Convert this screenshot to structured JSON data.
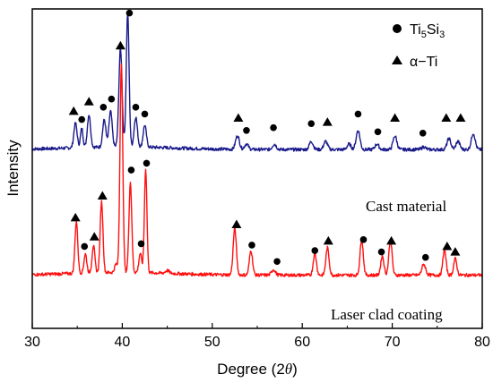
{
  "chart_data": {
    "type": "line",
    "xlabel_main": "Degree (2",
    "xlabel_symbol": "θ",
    "xlabel_close": ")",
    "ylabel": "Intensity",
    "xlim": [
      30,
      80
    ],
    "xticks": [
      "30",
      "40",
      "50",
      "60",
      "70",
      "80"
    ],
    "yticks_shown": false,
    "legend": {
      "placement": "top-right",
      "entries": [
        {
          "marker": "circle",
          "label_main": "Ti",
          "label_sub1": "5",
          "label_mid": "Si",
          "label_sub2": "3"
        },
        {
          "marker": "triangle",
          "label": "α−Ti"
        }
      ]
    },
    "series": [
      {
        "name": "Cast material",
        "color": "#1a1a8c",
        "baseline": 0.655,
        "peaks": [
          {
            "x": 34.8,
            "h": 0.09,
            "w": 0.25
          },
          {
            "x": 35.5,
            "h": 0.07,
            "w": 0.2
          },
          {
            "x": 36.3,
            "h": 0.12,
            "w": 0.25
          },
          {
            "x": 38.0,
            "h": 0.1,
            "w": 0.25
          },
          {
            "x": 38.7,
            "h": 0.13,
            "w": 0.25
          },
          {
            "x": 39.8,
            "h": 0.36,
            "w": 0.25
          },
          {
            "x": 40.6,
            "h": 0.49,
            "w": 0.22
          },
          {
            "x": 41.5,
            "h": 0.11,
            "w": 0.25
          },
          {
            "x": 42.5,
            "h": 0.08,
            "w": 0.25
          },
          {
            "x": 52.8,
            "h": 0.05,
            "w": 0.3
          },
          {
            "x": 53.8,
            "h": 0.02,
            "w": 0.3
          },
          {
            "x": 56.9,
            "h": 0.02,
            "w": 0.3
          },
          {
            "x": 61.0,
            "h": 0.03,
            "w": 0.3
          },
          {
            "x": 62.6,
            "h": 0.03,
            "w": 0.3
          },
          {
            "x": 65.2,
            "h": 0.02,
            "w": 0.3
          },
          {
            "x": 66.2,
            "h": 0.07,
            "w": 0.3
          },
          {
            "x": 68.3,
            "h": 0.02,
            "w": 0.3
          },
          {
            "x": 70.3,
            "h": 0.05,
            "w": 0.3
          },
          {
            "x": 73.5,
            "h": 0.01,
            "w": 0.3
          },
          {
            "x": 76.3,
            "h": 0.04,
            "w": 0.3
          },
          {
            "x": 77.3,
            "h": 0.03,
            "w": 0.3
          },
          {
            "x": 79.0,
            "h": 0.06,
            "w": 0.3
          }
        ],
        "label": "Cast material"
      },
      {
        "name": "Laser clad coating",
        "color": "#ff1010",
        "baseline": 0.195,
        "peaks": [
          {
            "x": 34.9,
            "h": 0.19,
            "w": 0.22
          },
          {
            "x": 35.9,
            "h": 0.07,
            "w": 0.22
          },
          {
            "x": 36.8,
            "h": 0.1,
            "w": 0.22
          },
          {
            "x": 37.7,
            "h": 0.26,
            "w": 0.22
          },
          {
            "x": 39.3,
            "h": 0.03,
            "w": 0.22
          },
          {
            "x": 39.9,
            "h": 0.76,
            "w": 0.22
          },
          {
            "x": 40.9,
            "h": 0.33,
            "w": 0.22
          },
          {
            "x": 42.0,
            "h": 0.07,
            "w": 0.22
          },
          {
            "x": 42.6,
            "h": 0.38,
            "w": 0.2
          },
          {
            "x": 45.0,
            "h": 0.01,
            "w": 0.3
          },
          {
            "x": 52.5,
            "h": 0.17,
            "w": 0.25
          },
          {
            "x": 54.3,
            "h": 0.09,
            "w": 0.25
          },
          {
            "x": 56.8,
            "h": 0.02,
            "w": 0.3
          },
          {
            "x": 61.4,
            "h": 0.08,
            "w": 0.25
          },
          {
            "x": 62.8,
            "h": 0.1,
            "w": 0.25
          },
          {
            "x": 66.6,
            "h": 0.13,
            "w": 0.25
          },
          {
            "x": 68.9,
            "h": 0.07,
            "w": 0.25
          },
          {
            "x": 69.8,
            "h": 0.13,
            "w": 0.25
          },
          {
            "x": 73.5,
            "h": 0.04,
            "w": 0.3
          },
          {
            "x": 75.8,
            "h": 0.09,
            "w": 0.25
          },
          {
            "x": 77.0,
            "h": 0.06,
            "w": 0.25
          }
        ],
        "label": "Laser clad coating"
      }
    ],
    "markers": [
      {
        "series": "Cast material",
        "type": "triangle",
        "x": 34.6,
        "y": 0.795
      },
      {
        "series": "Cast material",
        "type": "circle",
        "x": 35.5,
        "y": 0.765
      },
      {
        "series": "Cast material",
        "type": "triangle",
        "x": 36.3,
        "y": 0.83
      },
      {
        "series": "Cast material",
        "type": "circle",
        "x": 37.9,
        "y": 0.81
      },
      {
        "series": "Cast material",
        "type": "circle",
        "x": 38.8,
        "y": 0.84
      },
      {
        "series": "Cast material",
        "type": "triangle",
        "x": 39.8,
        "y": 1.035
      },
      {
        "series": "Cast material",
        "type": "circle",
        "x": 40.8,
        "y": 1.155
      },
      {
        "series": "Cast material",
        "type": "circle",
        "x": 41.5,
        "y": 0.81
      },
      {
        "series": "Cast material",
        "type": "circle",
        "x": 42.5,
        "y": 0.785
      },
      {
        "series": "Cast material",
        "type": "triangle",
        "x": 52.9,
        "y": 0.77
      },
      {
        "series": "Cast material",
        "type": "circle",
        "x": 53.8,
        "y": 0.725
      },
      {
        "series": "Cast material",
        "type": "circle",
        "x": 56.8,
        "y": 0.735
      },
      {
        "series": "Cast material",
        "type": "circle",
        "x": 61.0,
        "y": 0.75
      },
      {
        "series": "Cast material",
        "type": "triangle",
        "x": 62.8,
        "y": 0.755
      },
      {
        "series": "Cast material",
        "type": "circle",
        "x": 66.2,
        "y": 0.785
      },
      {
        "series": "Cast material",
        "type": "circle",
        "x": 68.4,
        "y": 0.72
      },
      {
        "series": "Cast material",
        "type": "triangle",
        "x": 70.3,
        "y": 0.77
      },
      {
        "series": "Cast material",
        "type": "circle",
        "x": 73.4,
        "y": 0.715
      },
      {
        "series": "Cast material",
        "type": "triangle",
        "x": 76.0,
        "y": 0.77
      },
      {
        "series": "Cast material",
        "type": "triangle",
        "x": 77.6,
        "y": 0.77
      },
      {
        "series": "Laser clad coating",
        "type": "triangle",
        "x": 34.8,
        "y": 0.405
      },
      {
        "series": "Laser clad coating",
        "type": "circle",
        "x": 35.8,
        "y": 0.3
      },
      {
        "series": "Laser clad coating",
        "type": "triangle",
        "x": 36.9,
        "y": 0.335
      },
      {
        "series": "Laser clad coating",
        "type": "triangle",
        "x": 37.8,
        "y": 0.485
      },
      {
        "series": "Laser clad coating",
        "type": "circle",
        "x": 41.0,
        "y": 0.58
      },
      {
        "series": "Laser clad coating",
        "type": "circle",
        "x": 42.1,
        "y": 0.31
      },
      {
        "series": "Laser clad coating",
        "type": "circle",
        "x": 42.7,
        "y": 0.605
      },
      {
        "series": "Laser clad coating",
        "type": "triangle",
        "x": 52.7,
        "y": 0.38
      },
      {
        "series": "Laser clad coating",
        "type": "circle",
        "x": 54.4,
        "y": 0.305
      },
      {
        "series": "Laser clad coating",
        "type": "circle",
        "x": 57.2,
        "y": 0.245
      },
      {
        "series": "Laser clad coating",
        "type": "circle",
        "x": 61.4,
        "y": 0.285
      },
      {
        "series": "Laser clad coating",
        "type": "triangle",
        "x": 62.9,
        "y": 0.32
      },
      {
        "series": "Laser clad coating",
        "type": "circle",
        "x": 66.8,
        "y": 0.325
      },
      {
        "series": "Laser clad coating",
        "type": "circle",
        "x": 68.8,
        "y": 0.28
      },
      {
        "series": "Laser clad coating",
        "type": "triangle",
        "x": 69.9,
        "y": 0.32
      },
      {
        "series": "Laser clad coating",
        "type": "circle",
        "x": 73.7,
        "y": 0.26
      },
      {
        "series": "Laser clad coating",
        "type": "triangle",
        "x": 76.1,
        "y": 0.3
      },
      {
        "series": "Laser clad coating",
        "type": "triangle",
        "x": 77.0,
        "y": 0.28
      }
    ]
  }
}
